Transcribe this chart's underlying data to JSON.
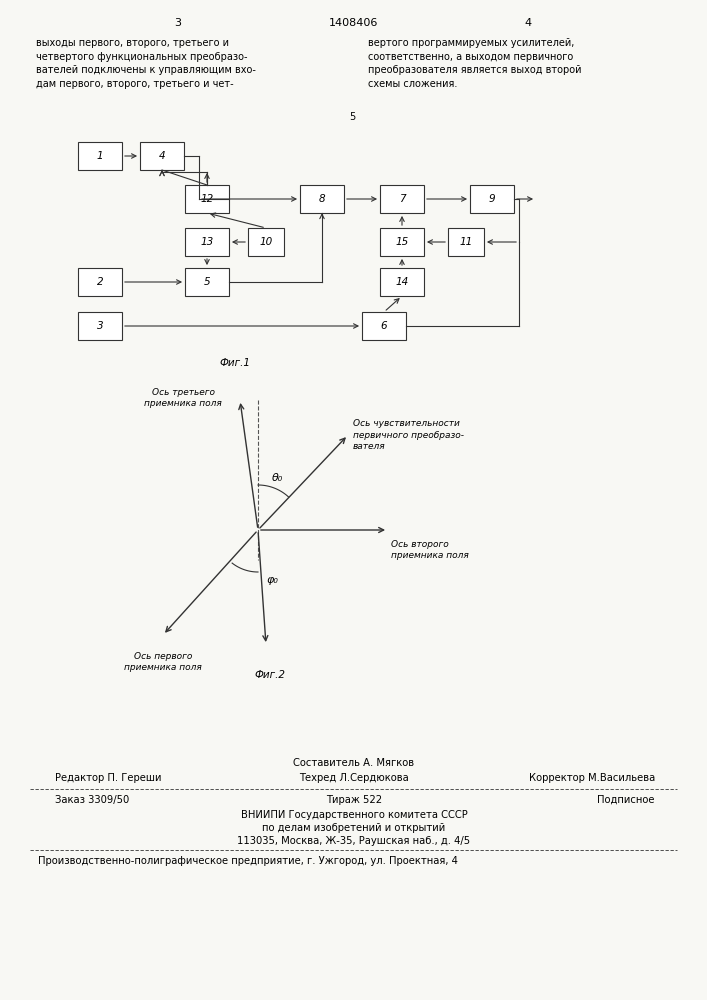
{
  "page_title": "1408406",
  "page_num_left": "3",
  "page_num_right": "4",
  "text_left": "выходы первого, второго, третьего и\nчетвертого функциональных преобразо-\nвателей подключены к управляющим вхо-\nдам первого, второго, третьего и чет-",
  "text_right": "вертого программируемых усилителей,\nсоответственно, а выходом первичного\nпреобразователя является выход второй\nсхемы сложения.",
  "text_footnote": "5",
  "fig1_caption": "Фиг.1",
  "fig2_caption": "Фиг.2",
  "fig2_labels": {
    "axis1": "Ось третьего\nприемника поля",
    "axis2": "Ось чувствительности\nпервичного преобразо-\nвателя",
    "axis3": "Ось второго\nприемника поля",
    "axis4": "Ось первого\nприемника поля",
    "theta": "θ₀",
    "phi": "φ₀"
  },
  "footer_line1": "Составитель А. Мягков",
  "footer_editor": "Редактор П. Гереши",
  "footer_tech": "Техред Л.Сердюкова",
  "footer_corrector": "Корректор М.Васильева",
  "footer_order": "Заказ 3309/50",
  "footer_print": "Тираж 522",
  "footer_type": "Подписное",
  "footer_org1": "ВНИИПИ Государственного комитета СССР",
  "footer_org2": "по делам изобретений и открытий",
  "footer_org3": "113035, Москва, Ж-35, Раушская наб., д. 4/5",
  "footer_factory": "Производственно-полиграфическое предприятие, г. Ужгород, ул. Проектная, 4",
  "bg_color": "#f8f8f4"
}
